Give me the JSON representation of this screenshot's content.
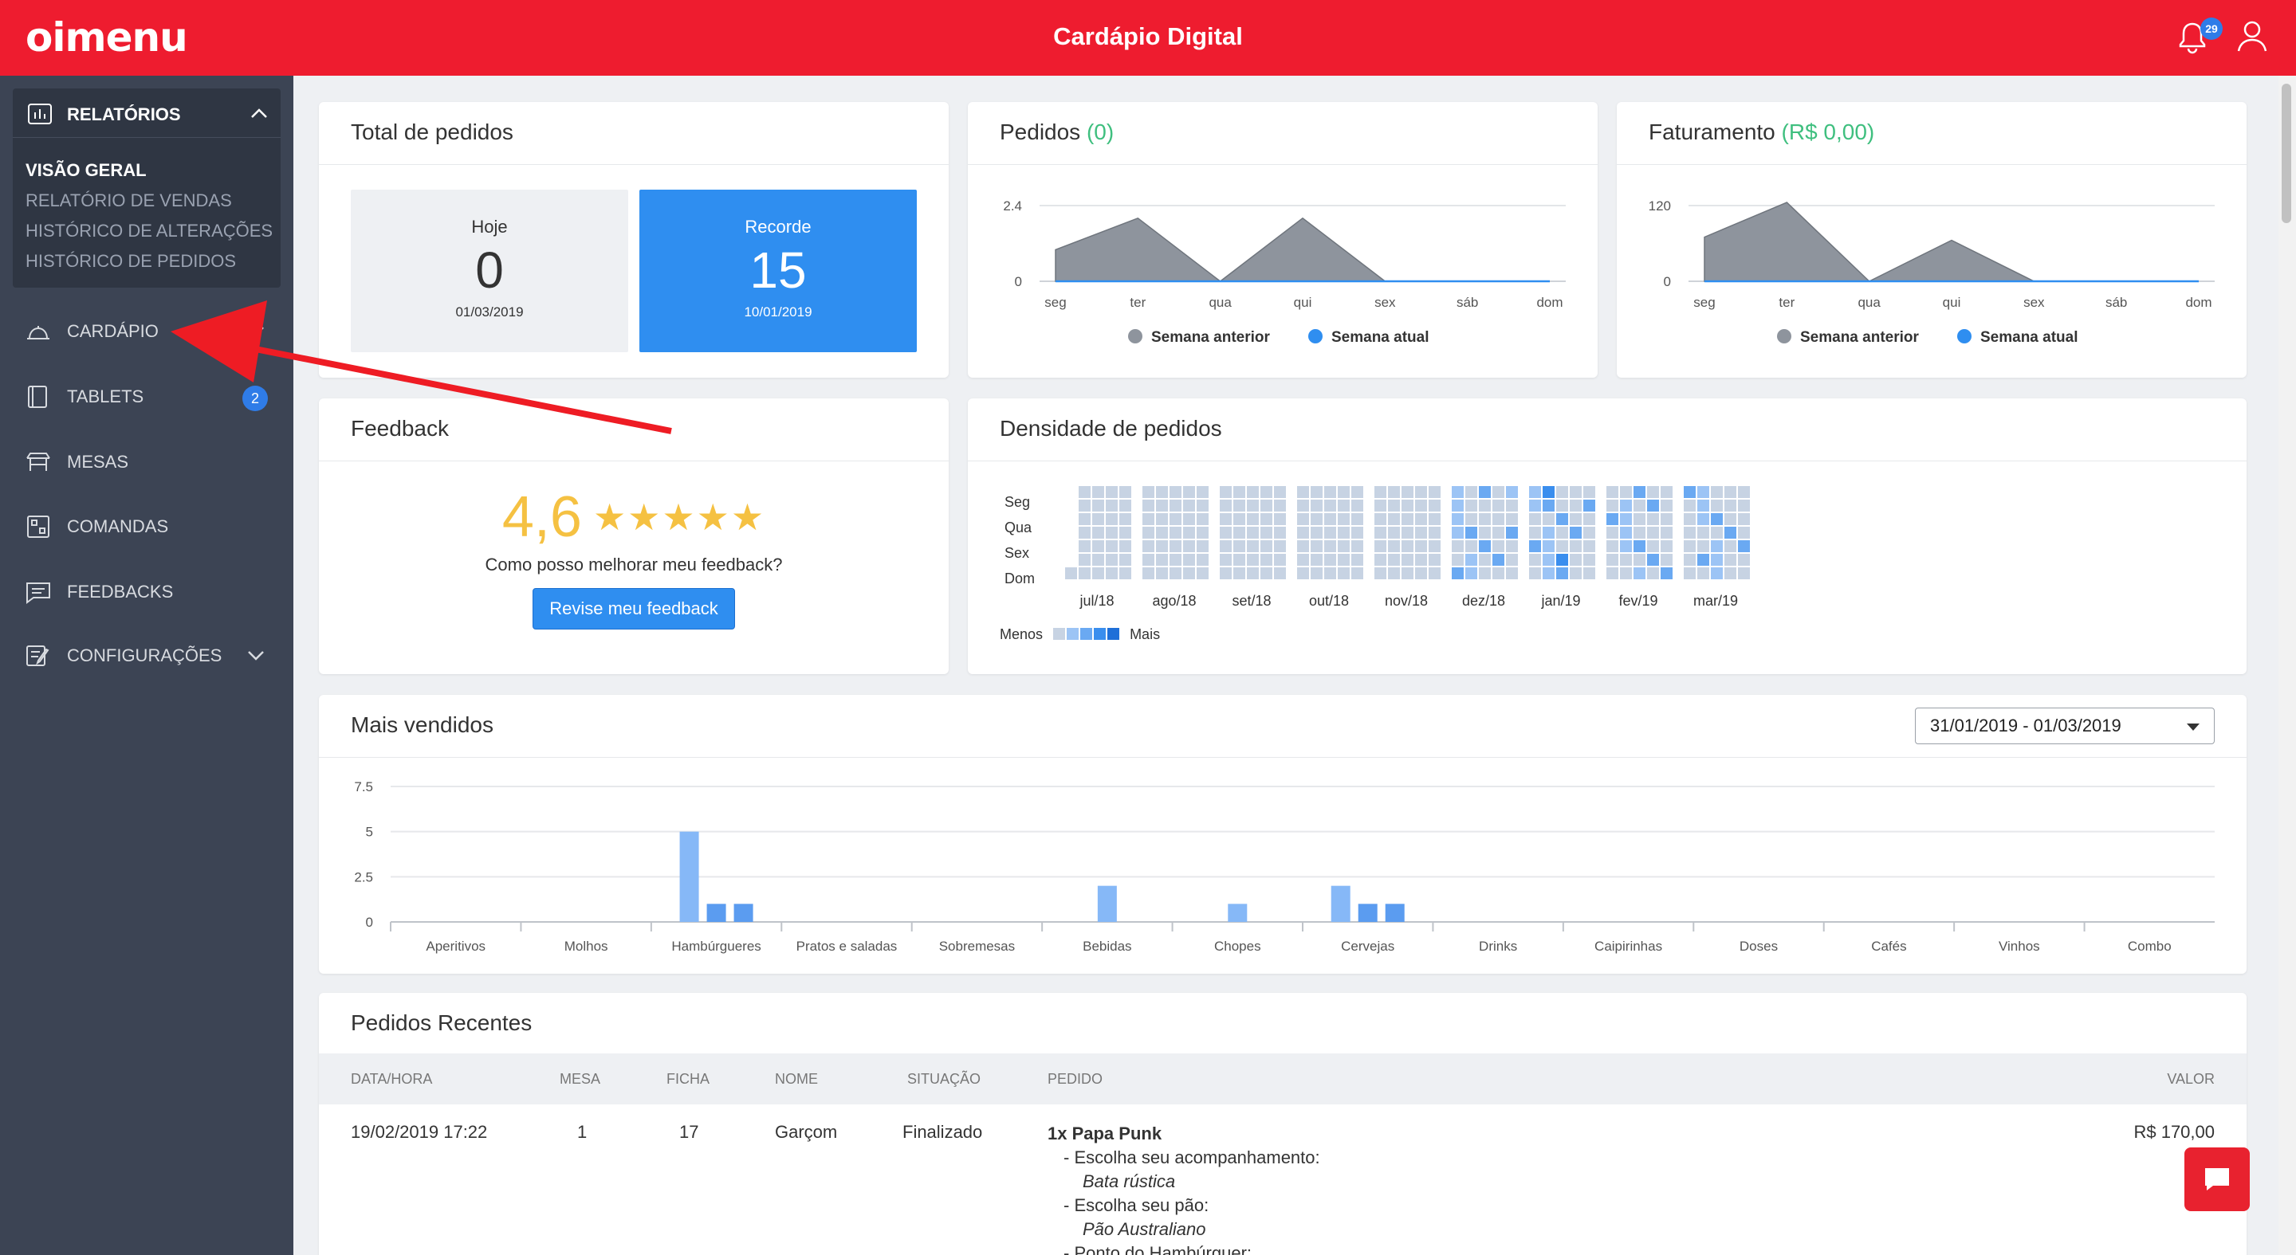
{
  "header": {
    "logo": "oimenu",
    "title": "Cardápio Digital",
    "notification_count": "29"
  },
  "sidebar": {
    "reports_label": "RELATÓRIOS",
    "reports_items": [
      "VISÃO GERAL",
      "RELATÓRIO DE VENDAS",
      "HISTÓRICO DE ALTERAÇÕES",
      "HISTÓRICO DE PEDIDOS"
    ],
    "items": [
      {
        "label": "CARDÁPIO",
        "icon": "cloche-icon"
      },
      {
        "label": "TABLETS",
        "icon": "tablet-icon",
        "badge": "2"
      },
      {
        "label": "MESAS",
        "icon": "table-icon"
      },
      {
        "label": "COMANDAS",
        "icon": "qrcode-icon"
      },
      {
        "label": "FEEDBACKS",
        "icon": "chat-icon"
      },
      {
        "label": "CONFIGURAÇÕES",
        "icon": "settings-icon"
      }
    ]
  },
  "total_pedidos": {
    "title": "Total de pedidos",
    "today": {
      "label": "Hoje",
      "value": "0",
      "date": "01/03/2019"
    },
    "record": {
      "label": "Recorde",
      "value": "15",
      "date": "10/01/2019"
    }
  },
  "pedidos": {
    "title": "Pedidos",
    "value": "(0)"
  },
  "faturamento": {
    "title": "Faturamento",
    "value": "(R$ 0,00)"
  },
  "feedback": {
    "title": "Feedback",
    "rating": "4,6",
    "stars": "★★★★★",
    "question": "Como posso melhorar meu feedback?",
    "button": "Revise meu feedback"
  },
  "densidade": {
    "title": "Densidade de pedidos",
    "days": [
      "Seg",
      "Qua",
      "Sex",
      "Dom"
    ],
    "months": [
      "jul/18",
      "ago/18",
      "set/18",
      "out/18",
      "nov/18",
      "dez/18",
      "jan/19",
      "fev/19",
      "mar/19"
    ],
    "legend_less": "Menos",
    "legend_more": "Mais"
  },
  "mais_vendidos": {
    "title": "Mais vendidos",
    "date_range": "31/01/2019 - 01/03/2019"
  },
  "pedidos_recentes": {
    "title": "Pedidos Recentes",
    "columns": [
      "DATA/HORA",
      "MESA",
      "FICHA",
      "NOME",
      "SITUAÇÃO",
      "PEDIDO",
      "VALOR"
    ],
    "row": {
      "datetime": "19/02/2019 17:22",
      "mesa": "1",
      "ficha": "17",
      "nome": "Garçom",
      "situacao": "Finalizado",
      "valor": "R$ 170,00",
      "order_lines": [
        {
          "text": "1x Papa Punk",
          "kind": "item"
        },
        {
          "text": "- Escolha seu acompanhamento:",
          "kind": "q"
        },
        {
          "text": "Bata rústica",
          "kind": "a"
        },
        {
          "text": "- Escolha seu pão:",
          "kind": "q"
        },
        {
          "text": "Pão Australiano",
          "kind": "a"
        },
        {
          "text": "- Ponto do Hambúrguer:",
          "kind": "q"
        }
      ]
    }
  },
  "chart_data": [
    {
      "type": "area",
      "title": "Pedidos (0)",
      "categories": [
        "seg",
        "ter",
        "qua",
        "qui",
        "sex",
        "sáb",
        "dom"
      ],
      "yticks": [
        "2.4",
        "0"
      ],
      "ylim": [
        0,
        2.4
      ],
      "series": [
        {
          "name": "Semana anterior",
          "values": [
            1,
            2,
            0,
            2,
            0,
            0,
            0
          ],
          "color": "#8e949d"
        },
        {
          "name": "Semana atual",
          "values": [
            0,
            0,
            0,
            0,
            0,
            0,
            0
          ],
          "color": "#2f8ef0"
        }
      ],
      "legend": "bottom"
    },
    {
      "type": "area",
      "title": "Faturamento (R$ 0,00)",
      "categories": [
        "seg",
        "ter",
        "qua",
        "qui",
        "sex",
        "sáb",
        "dom"
      ],
      "yticks": [
        "120",
        "0"
      ],
      "ylim": [
        0,
        120
      ],
      "series": [
        {
          "name": "Semana anterior",
          "values": [
            70,
            125,
            0,
            65,
            0,
            0,
            0
          ],
          "color": "#8e949d"
        },
        {
          "name": "Semana atual",
          "values": [
            0,
            0,
            0,
            0,
            0,
            0,
            0
          ],
          "color": "#2f8ef0"
        }
      ],
      "legend": "bottom"
    },
    {
      "type": "bar",
      "title": "Mais vendidos",
      "categories": [
        "Aperitivos",
        "Molhos",
        "Hambúrgueres",
        "Pratos e saladas",
        "Sobremesas",
        "Bebidas",
        "Chopes",
        "Cervejas",
        "Drinks",
        "Caipirinhas",
        "Doses",
        "Cafés",
        "Vinhos",
        "Combo"
      ],
      "yticks": [
        "7.5",
        "5",
        "2.5",
        "0"
      ],
      "ylim": [
        0,
        7.5
      ],
      "bars": [
        [],
        [],
        [
          5,
          1,
          1
        ],
        [],
        [],
        [
          2
        ],
        [
          1
        ],
        [
          2,
          1,
          1
        ],
        [],
        [],
        [],
        [],
        [],
        []
      ]
    }
  ]
}
